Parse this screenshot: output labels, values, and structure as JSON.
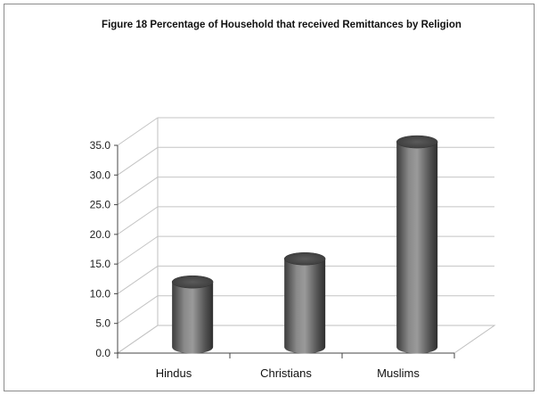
{
  "chart_data": {
    "type": "bar",
    "title": "Figure 18 Percentage of Household that received Remittances by Religion",
    "categories": [
      "Hindus",
      "Christians",
      "Muslims"
    ],
    "values": [
      11.0,
      14.9,
      34.6
    ],
    "ylim": [
      0,
      35
    ],
    "yticks": [
      "0.0",
      "5.0",
      "10.0",
      "15.0",
      "20.0",
      "25.0",
      "30.0",
      "35.0"
    ],
    "grid": true,
    "bar_style": "3d-cylinder",
    "bar_color": "#6e6e6e"
  }
}
